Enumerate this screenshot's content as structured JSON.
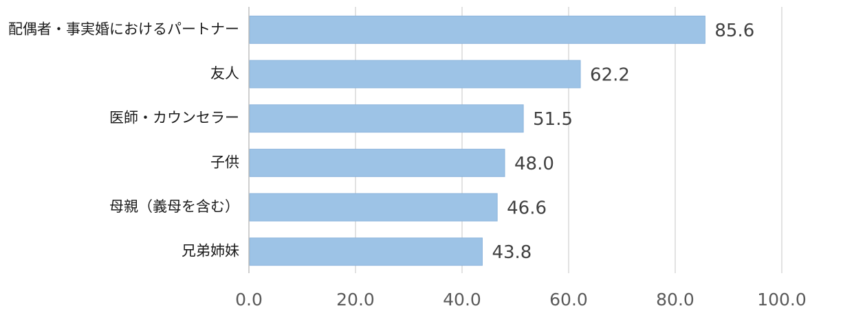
{
  "colors": {
    "bar": "#9dc3e6",
    "bar_edge": "#8cb4dc"
  },
  "chart_data": {
    "type": "bar",
    "orientation": "horizontal",
    "categories": [
      "配偶者・事実婚におけるパートナー",
      "友人",
      "医師・カウンセラー",
      "子供",
      "母親（義母を含む）",
      "兄弟姉妹"
    ],
    "values": [
      85.6,
      62.2,
      51.5,
      48.0,
      46.6,
      43.8
    ],
    "value_labels": [
      "85.6",
      "62.2",
      "51.5",
      "48.0",
      "46.6",
      "43.8"
    ],
    "xlim": [
      0,
      100
    ],
    "x_ticks": [
      0,
      20,
      40,
      60,
      80,
      100
    ],
    "x_tick_labels": [
      "0.0",
      "20.0",
      "40.0",
      "60.0",
      "80.0",
      "100.0"
    ],
    "grid": "vertical",
    "legend": "none"
  }
}
